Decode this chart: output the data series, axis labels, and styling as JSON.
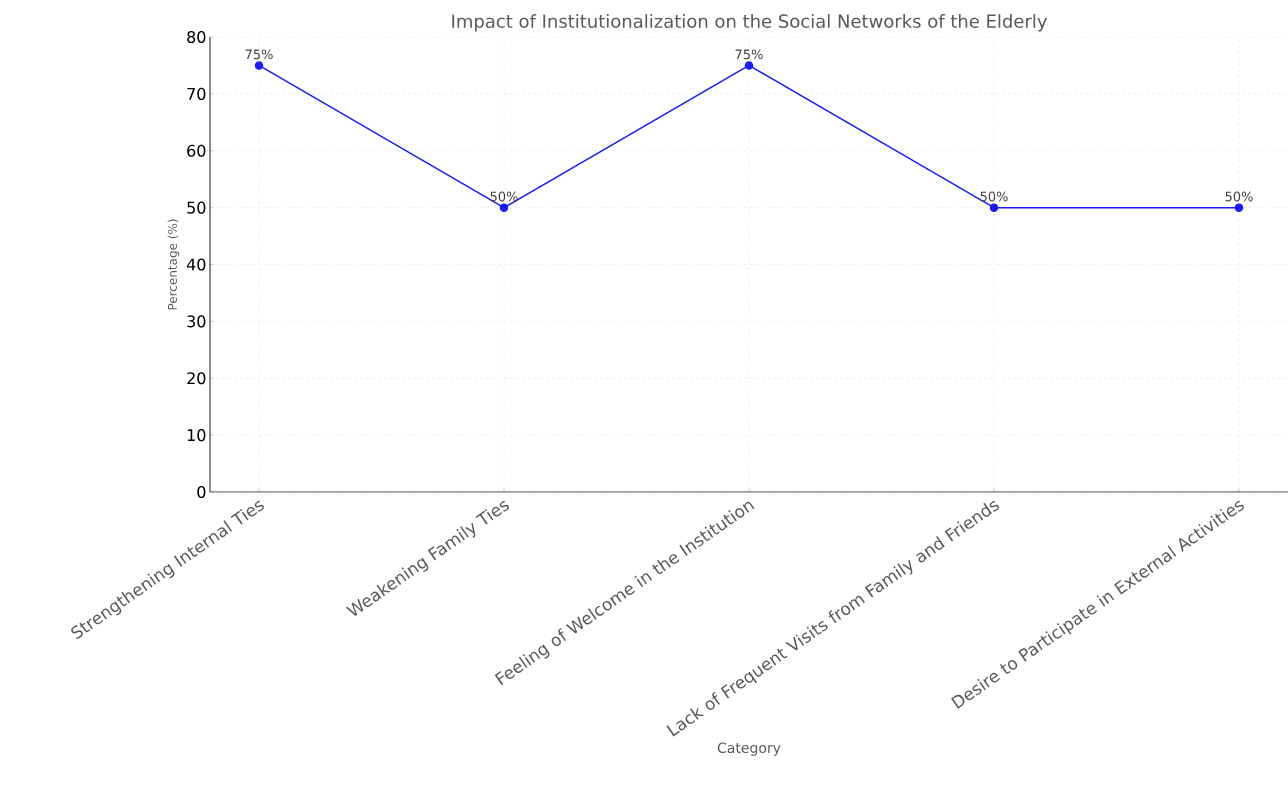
{
  "chart_data": {
    "type": "line",
    "title": "Impact of Institutionalization on the Social Networks of the Elderly",
    "xlabel": "Category",
    "ylabel": "Percentage (%)",
    "categories": [
      "Strengthening Internal Ties",
      "Weakening Family Ties",
      "Feeling of Welcome in the Institution",
      "Lack of Frequent Visits from Family and Friends",
      "Desire to Participate in External Activities"
    ],
    "values": [
      75,
      50,
      75,
      50,
      50
    ],
    "value_labels": [
      "75%",
      "50%",
      "75%",
      "50%",
      "50%"
    ],
    "color": "#1a1aff",
    "marker": "circle",
    "line_style": "solid",
    "grid": true,
    "ylim": [
      0,
      80
    ],
    "yticks": [
      0,
      10,
      20,
      30,
      40,
      50,
      60,
      70,
      80
    ]
  }
}
